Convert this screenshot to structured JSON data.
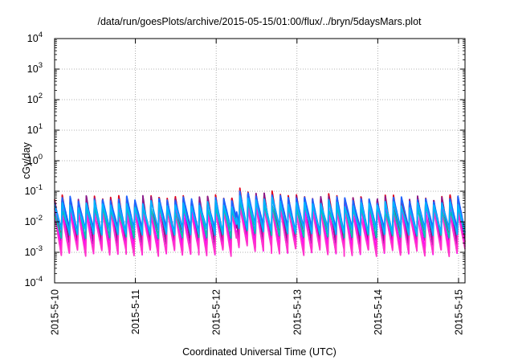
{
  "chart_data": {
    "type": "line",
    "title": "/data/run/goesPlots/archive/2015-05-15/01:00/flux/../bryn/5daysMars.plot",
    "xlabel": "Coordinated Universal Time (UTC)",
    "ylabel": "cGy/day",
    "y_scale": "log",
    "ylim": [
      0.0001,
      10000
    ],
    "xlim_days": [
      0,
      5.08
    ],
    "grid": true,
    "y_ticks": [
      {
        "base": "10",
        "exp": "-4",
        "value": 0.0001
      },
      {
        "base": "10",
        "exp": "-3",
        "value": 0.001
      },
      {
        "base": "10",
        "exp": "-2",
        "value": 0.01
      },
      {
        "base": "10",
        "exp": "-1",
        "value": 0.1
      },
      {
        "base": "10",
        "exp": "0",
        "value": 1
      },
      {
        "base": "10",
        "exp": "1",
        "value": 10
      },
      {
        "base": "10",
        "exp": "2",
        "value": 100
      },
      {
        "base": "10",
        "exp": "3",
        "value": 1000
      },
      {
        "base": "10",
        "exp": "4",
        "value": 10000
      }
    ],
    "x_ticks": [
      {
        "label": "2015-5-10",
        "day": 0
      },
      {
        "label": "2015-5-11",
        "day": 1
      },
      {
        "label": "2015-5-12",
        "day": 2
      },
      {
        "label": "2015-5-13",
        "day": 3
      },
      {
        "label": "2015-5-14",
        "day": 4
      },
      {
        "label": "2015-5-15",
        "day": 5
      }
    ],
    "series_model": {
      "cycles_per_day": 10,
      "points": 1400,
      "storm_onset_day": 2.25,
      "storm_decay_day": 0.4
    },
    "series": [
      {
        "color": "#e0001a",
        "peak": 0.065,
        "trough": 0.0024,
        "storm_peak": 0.13
      },
      {
        "color": "#8a1a8a",
        "peak": 0.058,
        "trough": 0.0018,
        "storm_peak": 0.11
      },
      {
        "color": "#ff00ff",
        "peak": 0.032,
        "trough": 0.0011,
        "storm_peak": 0.06
      },
      {
        "color": "#ff33cc",
        "peak": 0.02,
        "trough": 0.0009,
        "storm_peak": 0.04
      },
      {
        "color": "#00c8b4",
        "peak": 0.03,
        "trough": 0.0036,
        "storm_peak": 0.055
      },
      {
        "color": "#1e64ff",
        "peak": 0.055,
        "trough": 0.0052,
        "storm_peak": 0.1
      },
      {
        "color": "#00b4ff",
        "peak": 0.04,
        "trough": 0.0042,
        "storm_peak": 0.075
      }
    ]
  }
}
